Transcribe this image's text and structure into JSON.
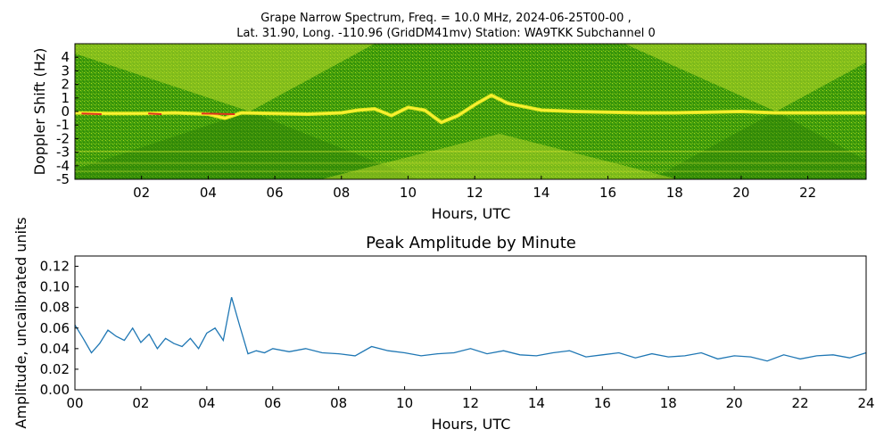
{
  "chart_data": [
    {
      "type": "heatmap",
      "title_line1": "Grape Narrow Spectrum, Freq. = 10.0 MHz, 2024-06-25T00-00 ,",
      "title_line2": "Lat.  31.90, Long. -110.96 (GridDM41mv) Station: WA9TKK Subchannel 0",
      "xlabel": "Hours, UTC",
      "ylabel": "Doppler Shift (Hz)",
      "xlim": [
        0,
        23.75
      ],
      "ylim": [
        -5,
        5
      ],
      "x_ticks": [
        2,
        4,
        6,
        8,
        10,
        12,
        14,
        16,
        18,
        20,
        22
      ],
      "x_tick_labels": [
        "02",
        "04",
        "06",
        "08",
        "10",
        "12",
        "14",
        "16",
        "18",
        "20",
        "22"
      ],
      "y_ticks": [
        -5,
        -4,
        -3,
        -2,
        -1,
        0,
        1,
        2,
        3,
        4
      ],
      "y_tick_labels": [
        "-5",
        "-4",
        "-3",
        "-2",
        "-1",
        "0",
        "1",
        "2",
        "3",
        "4"
      ],
      "colors": {
        "background": "#3c9a0a",
        "mid": "#8cc418",
        "high": "#f2ee1e",
        "peak": "#e0301e"
      },
      "trace": {
        "x": [
          0,
          1,
          2,
          3,
          4,
          4.5,
          5,
          6,
          7,
          8,
          8.5,
          9,
          9.5,
          10,
          10.5,
          11,
          11.5,
          12,
          12.5,
          13,
          14,
          15,
          16,
          17,
          18,
          19,
          20,
          21,
          22,
          23.75
        ],
        "y": [
          -0.1,
          -0.15,
          -0.15,
          -0.1,
          -0.2,
          -0.5,
          -0.1,
          -0.15,
          -0.2,
          -0.1,
          0.1,
          0.2,
          -0.3,
          0.3,
          0.1,
          -0.8,
          -0.3,
          0.5,
          1.2,
          0.6,
          0.1,
          0.0,
          -0.05,
          -0.1,
          -0.1,
          -0.05,
          0.0,
          -0.1,
          -0.1,
          -0.1
        ]
      }
    },
    {
      "type": "line",
      "title": "Peak Amplitude by Minute",
      "xlabel": "Hours, UTC",
      "ylabel": "Amplitude, uncalibrated units",
      "xlim": [
        0,
        24
      ],
      "ylim": [
        0,
        0.13
      ],
      "x_ticks": [
        0,
        2,
        4,
        6,
        8,
        10,
        12,
        14,
        16,
        18,
        20,
        22,
        24
      ],
      "x_tick_labels": [
        "00",
        "02",
        "04",
        "06",
        "08",
        "10",
        "12",
        "14",
        "16",
        "18",
        "20",
        "22",
        "24"
      ],
      "y_ticks": [
        0,
        0.02,
        0.04,
        0.06,
        0.08,
        0.1,
        0.12
      ],
      "y_tick_labels": [
        "0.00",
        "0.02",
        "0.04",
        "0.06",
        "0.08",
        "0.10",
        "0.12"
      ],
      "line_color": "#1f77b4",
      "series": [
        {
          "x": [
            0,
            0.25,
            0.5,
            0.75,
            1,
            1.25,
            1.5,
            1.75,
            2,
            2.25,
            2.5,
            2.75,
            3,
            3.25,
            3.5,
            3.75,
            4,
            4.25,
            4.5,
            4.75,
            5,
            5.25,
            5.5,
            5.75,
            6,
            6.5,
            7,
            7.5,
            8,
            8.5,
            9,
            9.5,
            10,
            10.5,
            11,
            11.5,
            12,
            12.5,
            13,
            13.5,
            14,
            14.5,
            15,
            15.5,
            16,
            16.5,
            17,
            17.5,
            18,
            18.5,
            19,
            19.5,
            20,
            20.5,
            21,
            21.5,
            22,
            22.5,
            23,
            23.5,
            24
          ],
          "y": [
            0.063,
            0.05,
            0.036,
            0.045,
            0.058,
            0.052,
            0.048,
            0.06,
            0.046,
            0.054,
            0.04,
            0.05,
            0.045,
            0.042,
            0.05,
            0.04,
            0.055,
            0.06,
            0.048,
            0.09,
            0.062,
            0.035,
            0.038,
            0.036,
            0.04,
            0.037,
            0.04,
            0.036,
            0.035,
            0.033,
            0.042,
            0.038,
            0.036,
            0.033,
            0.035,
            0.036,
            0.04,
            0.035,
            0.038,
            0.034,
            0.033,
            0.036,
            0.038,
            0.032,
            0.034,
            0.036,
            0.031,
            0.035,
            0.032,
            0.033,
            0.036,
            0.03,
            0.033,
            0.032,
            0.028,
            0.034,
            0.03,
            0.033,
            0.034,
            0.031,
            0.036
          ]
        }
      ]
    }
  ]
}
